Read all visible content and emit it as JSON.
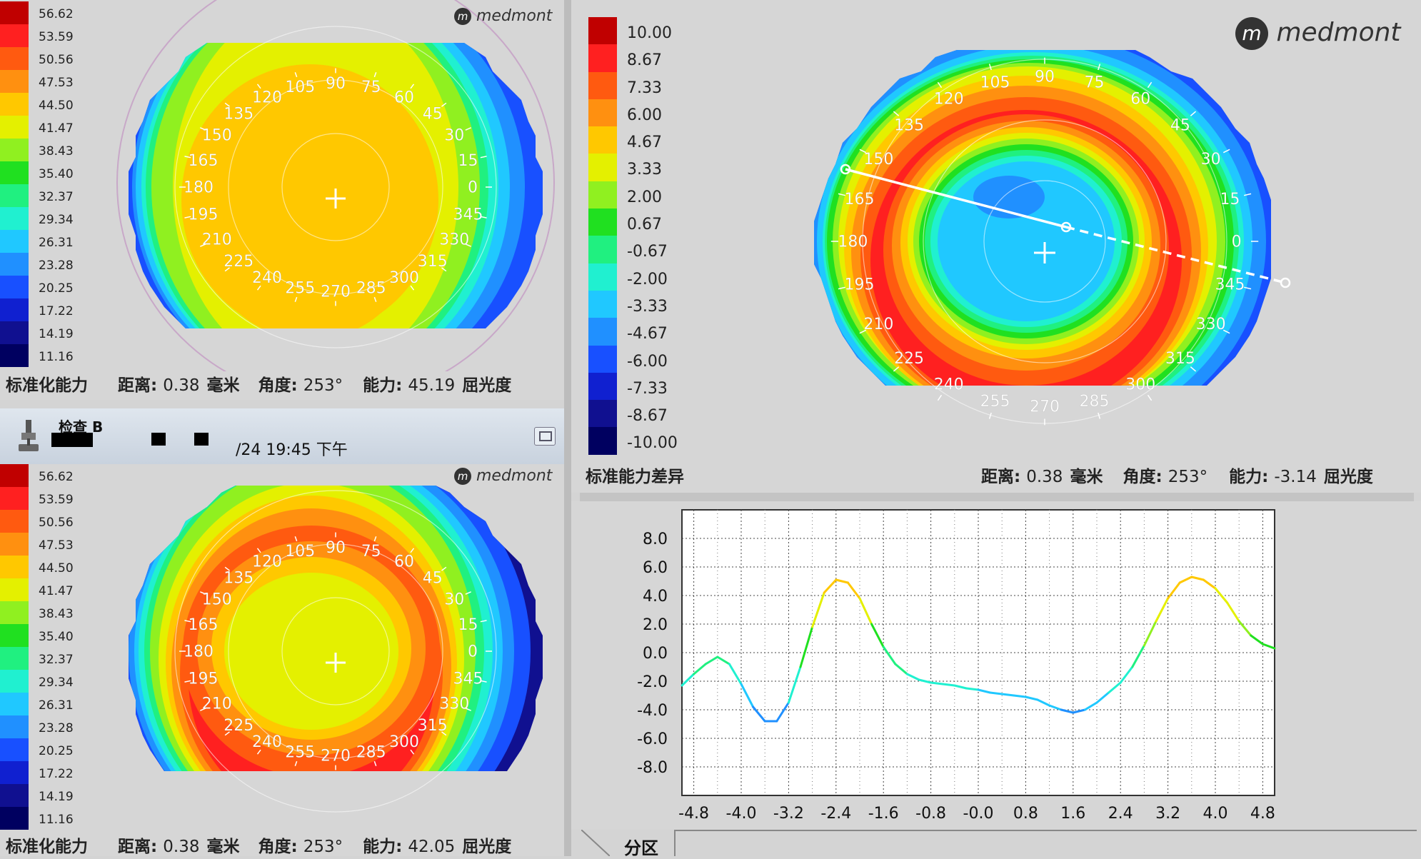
{
  "logo_text": "medmont",
  "tl": {
    "legend": [
      "56.62",
      "53.59",
      "50.56",
      "47.53",
      "44.50",
      "41.47",
      "38.43",
      "35.40",
      "32.37",
      "29.34",
      "26.31",
      "23.28",
      "20.25",
      "17.22",
      "14.19",
      "11.16"
    ],
    "status_title": "标准化能力",
    "dist_label": "距离:",
    "dist_value": "0.38",
    "dist_unit": "毫米",
    "angle_label": "角度:",
    "angle_value": "253°",
    "power_label": "能力:",
    "power_value": "45.19",
    "power_unit": "屈光度"
  },
  "toolbar": {
    "exam_label": "检查 B",
    "datetime": "/24 19:45 下午"
  },
  "bl": {
    "legend": [
      "56.62",
      "53.59",
      "50.56",
      "47.53",
      "44.50",
      "41.47",
      "38.43",
      "35.40",
      "32.37",
      "29.34",
      "26.31",
      "23.28",
      "20.25",
      "17.22",
      "14.19",
      "11.16"
    ],
    "status_title": "标准化能力",
    "dist_label": "距离:",
    "dist_value": "0.38",
    "dist_unit": "毫米",
    "angle_label": "角度:",
    "angle_value": "253°",
    "power_label": "能力:",
    "power_value": "42.05",
    "power_unit": "屈光度"
  },
  "right": {
    "legend": [
      "10.00",
      "8.67",
      "7.33",
      "6.00",
      "4.67",
      "3.33",
      "2.00",
      "0.67",
      "-0.67",
      "-2.00",
      "-3.33",
      "-4.67",
      "-6.00",
      "-7.33",
      "-8.67",
      "-10.00"
    ],
    "status_title": "标准能力差异",
    "dist_label": "距离:",
    "dist_value": "0.38",
    "dist_unit": "毫米",
    "angle_label": "角度:",
    "angle_value": "253°",
    "power_label": "能力:",
    "power_value": "-3.14",
    "power_unit": "屈光度"
  },
  "angles": [
    "90",
    "75",
    "60",
    "45",
    "30",
    "15",
    "0",
    "345",
    "330",
    "315",
    "300",
    "285",
    "270",
    "255",
    "240",
    "225",
    "210",
    "195",
    "180",
    "165",
    "150",
    "135",
    "120",
    "105"
  ],
  "legend_colors": [
    "#c00000",
    "#ff2020",
    "#ff5a10",
    "#ff9010",
    "#ffc800",
    "#e4f000",
    "#90f020",
    "#20e020",
    "#20f080",
    "#20f0d0",
    "#20c8ff",
    "#2090ff",
    "#1850ff",
    "#1020d0",
    "#101090",
    "#000060"
  ],
  "tab_label": "分区",
  "chart_data": {
    "type": "line",
    "xlim": [
      -5.0,
      5.0
    ],
    "ylim": [
      -10.0,
      10.0
    ],
    "x_ticks": [
      "-4.8",
      "-4.0",
      "-3.2",
      "-2.4",
      "-1.6",
      "-0.8",
      "-0.0",
      "0.8",
      "1.6",
      "2.4",
      "3.2",
      "4.0",
      "4.8"
    ],
    "y_ticks": [
      "8.0",
      "6.0",
      "4.0",
      "2.0",
      "0.0",
      "-2.0",
      "-4.0",
      "-6.0",
      "-8.0"
    ],
    "grid": true,
    "series": [
      {
        "x": [
          -5.0,
          -4.8,
          -4.6,
          -4.4,
          -4.2,
          -4.0,
          -3.8,
          -3.6,
          -3.4,
          -3.2,
          -3.0,
          -2.8,
          -2.6,
          -2.4,
          -2.2,
          -2.0,
          -1.8,
          -1.6,
          -1.4,
          -1.2,
          -1.0,
          -0.8,
          -0.6,
          -0.4,
          -0.2,
          0.0,
          0.2,
          0.4,
          0.6,
          0.8,
          1.0,
          1.2,
          1.4,
          1.6,
          1.8,
          2.0,
          2.2,
          2.4,
          2.6,
          2.8,
          3.0,
          3.2,
          3.4,
          3.6,
          3.8,
          4.0,
          4.2,
          4.4,
          4.6,
          4.8,
          5.0
        ],
        "y": [
          -2.3,
          -1.5,
          -0.8,
          -0.3,
          -0.8,
          -2.2,
          -3.8,
          -4.8,
          -4.8,
          -3.5,
          -1.0,
          1.8,
          4.2,
          5.1,
          4.9,
          3.8,
          2.0,
          0.4,
          -0.8,
          -1.5,
          -1.9,
          -2.1,
          -2.2,
          -2.3,
          -2.5,
          -2.6,
          -2.8,
          -2.9,
          -3.0,
          -3.1,
          -3.3,
          -3.7,
          -4.0,
          -4.2,
          -4.0,
          -3.5,
          -2.8,
          -2.1,
          -1.0,
          0.5,
          2.2,
          3.8,
          4.9,
          5.3,
          5.1,
          4.5,
          3.5,
          2.2,
          1.2,
          0.6,
          0.3
        ]
      }
    ]
  }
}
